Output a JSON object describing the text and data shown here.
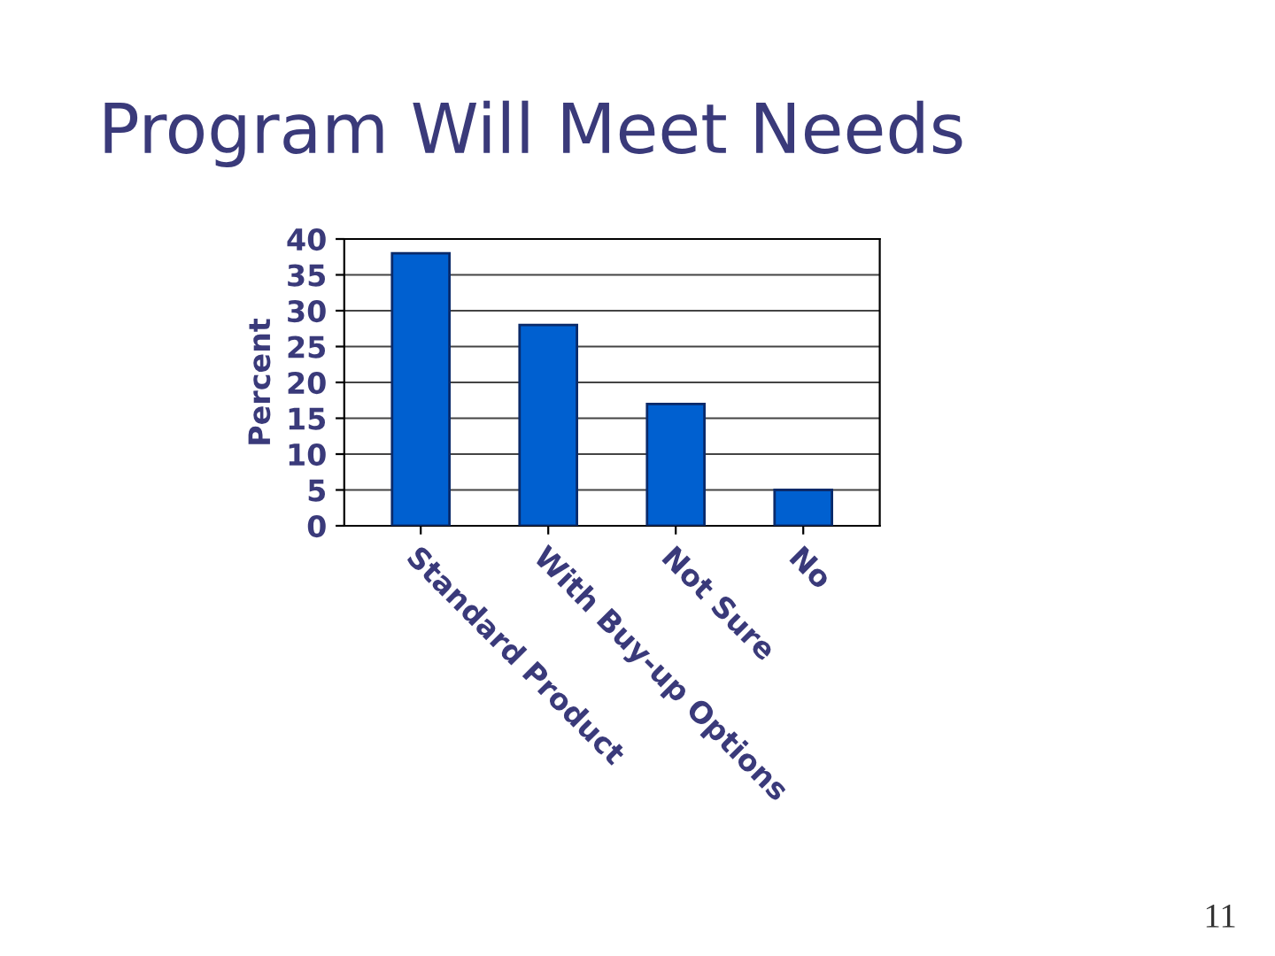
{
  "chart_data": {
    "type": "bar",
    "title": "Program Will Meet Needs",
    "ylabel": "Percent",
    "categories": [
      "Standard Product",
      "With Buy-up Options",
      "Not Sure",
      "No"
    ],
    "values": [
      38,
      28,
      17,
      5
    ],
    "color": "#0060d0",
    "ylim": [
      0,
      40
    ],
    "yticks": [
      0,
      5,
      10,
      15,
      20,
      25,
      30,
      35,
      40
    ],
    "grid": "y",
    "annotations": [
      "11"
    ]
  }
}
